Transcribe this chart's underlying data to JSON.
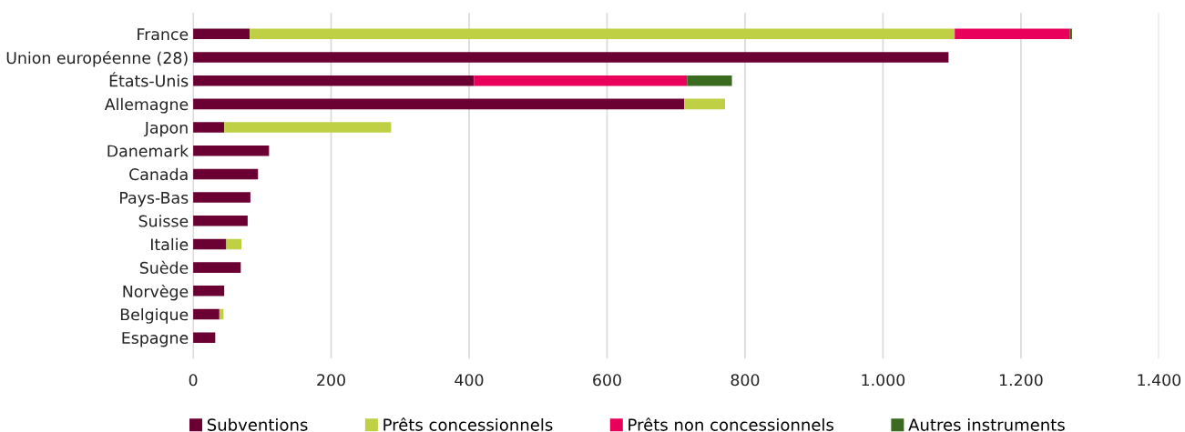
{
  "chart_data": {
    "type": "bar",
    "orientation": "horizontal",
    "stacked": true,
    "categories": [
      "France",
      "Union européenne (28)",
      "États-Unis",
      "Allemagne",
      "Japon",
      "Danemark",
      "Canada",
      "Pays-Bas",
      "Suisse",
      "Italie",
      "Suède",
      "Norvège",
      "Belgique",
      "Espagne"
    ],
    "series": [
      {
        "name": "Subventions",
        "color": "#6b0033",
        "values": [
          82,
          1095,
          407,
          712,
          45,
          110,
          94,
          83,
          79,
          48,
          69,
          45,
          38,
          32
        ]
      },
      {
        "name": "Prêts concessionnels",
        "color": "#bfd045",
        "values": [
          1022,
          0,
          0,
          59,
          242,
          0,
          0,
          0,
          0,
          22,
          0,
          0,
          6,
          0
        ]
      },
      {
        "name": "Prêts non concessionnels",
        "color": "#e8005a",
        "values": [
          167,
          0,
          309,
          0,
          0,
          0,
          0,
          0,
          0,
          0,
          0,
          0,
          0,
          0
        ]
      },
      {
        "name": "Autres instruments",
        "color": "#3a6b1f",
        "values": [
          3,
          0,
          65,
          0,
          0,
          0,
          0,
          0,
          0,
          0,
          0,
          0,
          0,
          0
        ]
      }
    ],
    "xlim": [
      0,
      1400
    ],
    "xticks": [
      0,
      200,
      400,
      600,
      800,
      {
        "value": 1000,
        "label": "1.000"
      },
      {
        "value": 1200,
        "label": "1.200"
      },
      {
        "value": 1400,
        "label": "1.400"
      }
    ],
    "grid": "x",
    "legend": "bottom"
  }
}
